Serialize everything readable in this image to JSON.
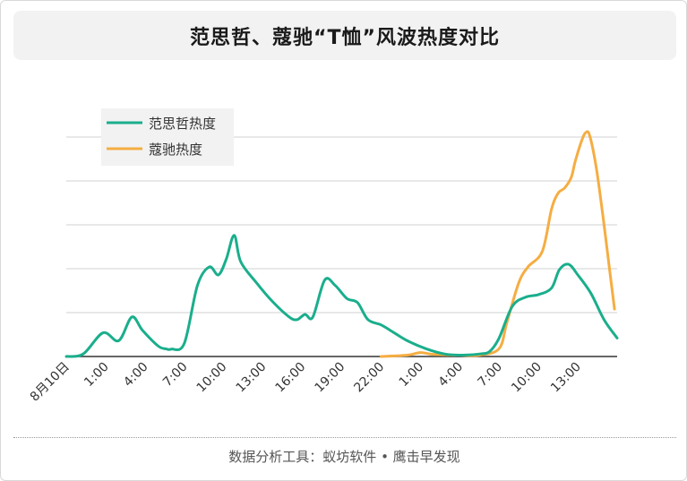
{
  "chart_data": {
    "type": "line",
    "title": "范思哲、蔻驰“T恤”风波热度对比",
    "xlabel": "",
    "ylabel": "",
    "grid": true,
    "legend_position": "top-left",
    "ylim": [
      0,
      100
    ],
    "x_tick_labels": [
      "8月10日",
      "1:00",
      "4:00",
      "7:00",
      "10:00",
      "13:00",
      "16:00",
      "19:00",
      "22:00",
      "1:00",
      "4:00",
      "7:00",
      "10:00",
      "13:00"
    ],
    "x_tick_hours": [
      0,
      3,
      6,
      9,
      12,
      15,
      18,
      21,
      24,
      27,
      30,
      33,
      36,
      39
    ],
    "series": [
      {
        "name": "范思哲热度",
        "color": "#1aae8c",
        "x": [
          0,
          1.3,
          2.8,
          4,
          5,
          5.8,
          7,
          7.6,
          8,
          9,
          10,
          10.9,
          11.6,
          12.2,
          12.8,
          13.3,
          14.5,
          15.7,
          17,
          17.6,
          18.2,
          18.8,
          19.7,
          20.5,
          21.4,
          22.2,
          23,
          24,
          25,
          26,
          27.4,
          28.8,
          30.2,
          31.6,
          32.3,
          33,
          34,
          35,
          36,
          37,
          37.6,
          38.3,
          39,
          40,
          41,
          42
        ],
        "y": [
          0,
          1,
          9,
          6,
          15,
          10,
          4,
          2.9,
          2.8,
          5,
          27,
          34,
          31,
          37,
          46,
          36,
          28,
          21,
          15,
          14,
          16,
          15,
          29,
          27,
          22,
          20.5,
          14,
          12,
          9,
          6,
          3,
          1,
          0.5,
          1,
          2,
          7,
          19,
          22.5,
          23.5,
          26,
          33,
          35,
          31,
          24,
          14,
          7
        ]
      },
      {
        "name": "蔻驰热度",
        "color": "#f5ad42",
        "x": [
          24,
          26,
          27,
          28,
          30,
          31.5,
          33,
          33.6,
          34.5,
          35.2,
          36.3,
          37,
          37.5,
          38,
          38.5,
          38.8,
          39.3,
          39.6,
          39.9,
          40.4,
          40.9,
          41.4,
          41.8
        ],
        "y": [
          0,
          0.5,
          1.5,
          0.8,
          0.5,
          0.5,
          3,
          13,
          28,
          34,
          40,
          56,
          62,
          64,
          68,
          74,
          82,
          85,
          84,
          72,
          54,
          34,
          18
        ]
      }
    ]
  },
  "footer": {
    "source_text": "数据分析工具：蚁坊软件 • 鹰击早发现"
  }
}
